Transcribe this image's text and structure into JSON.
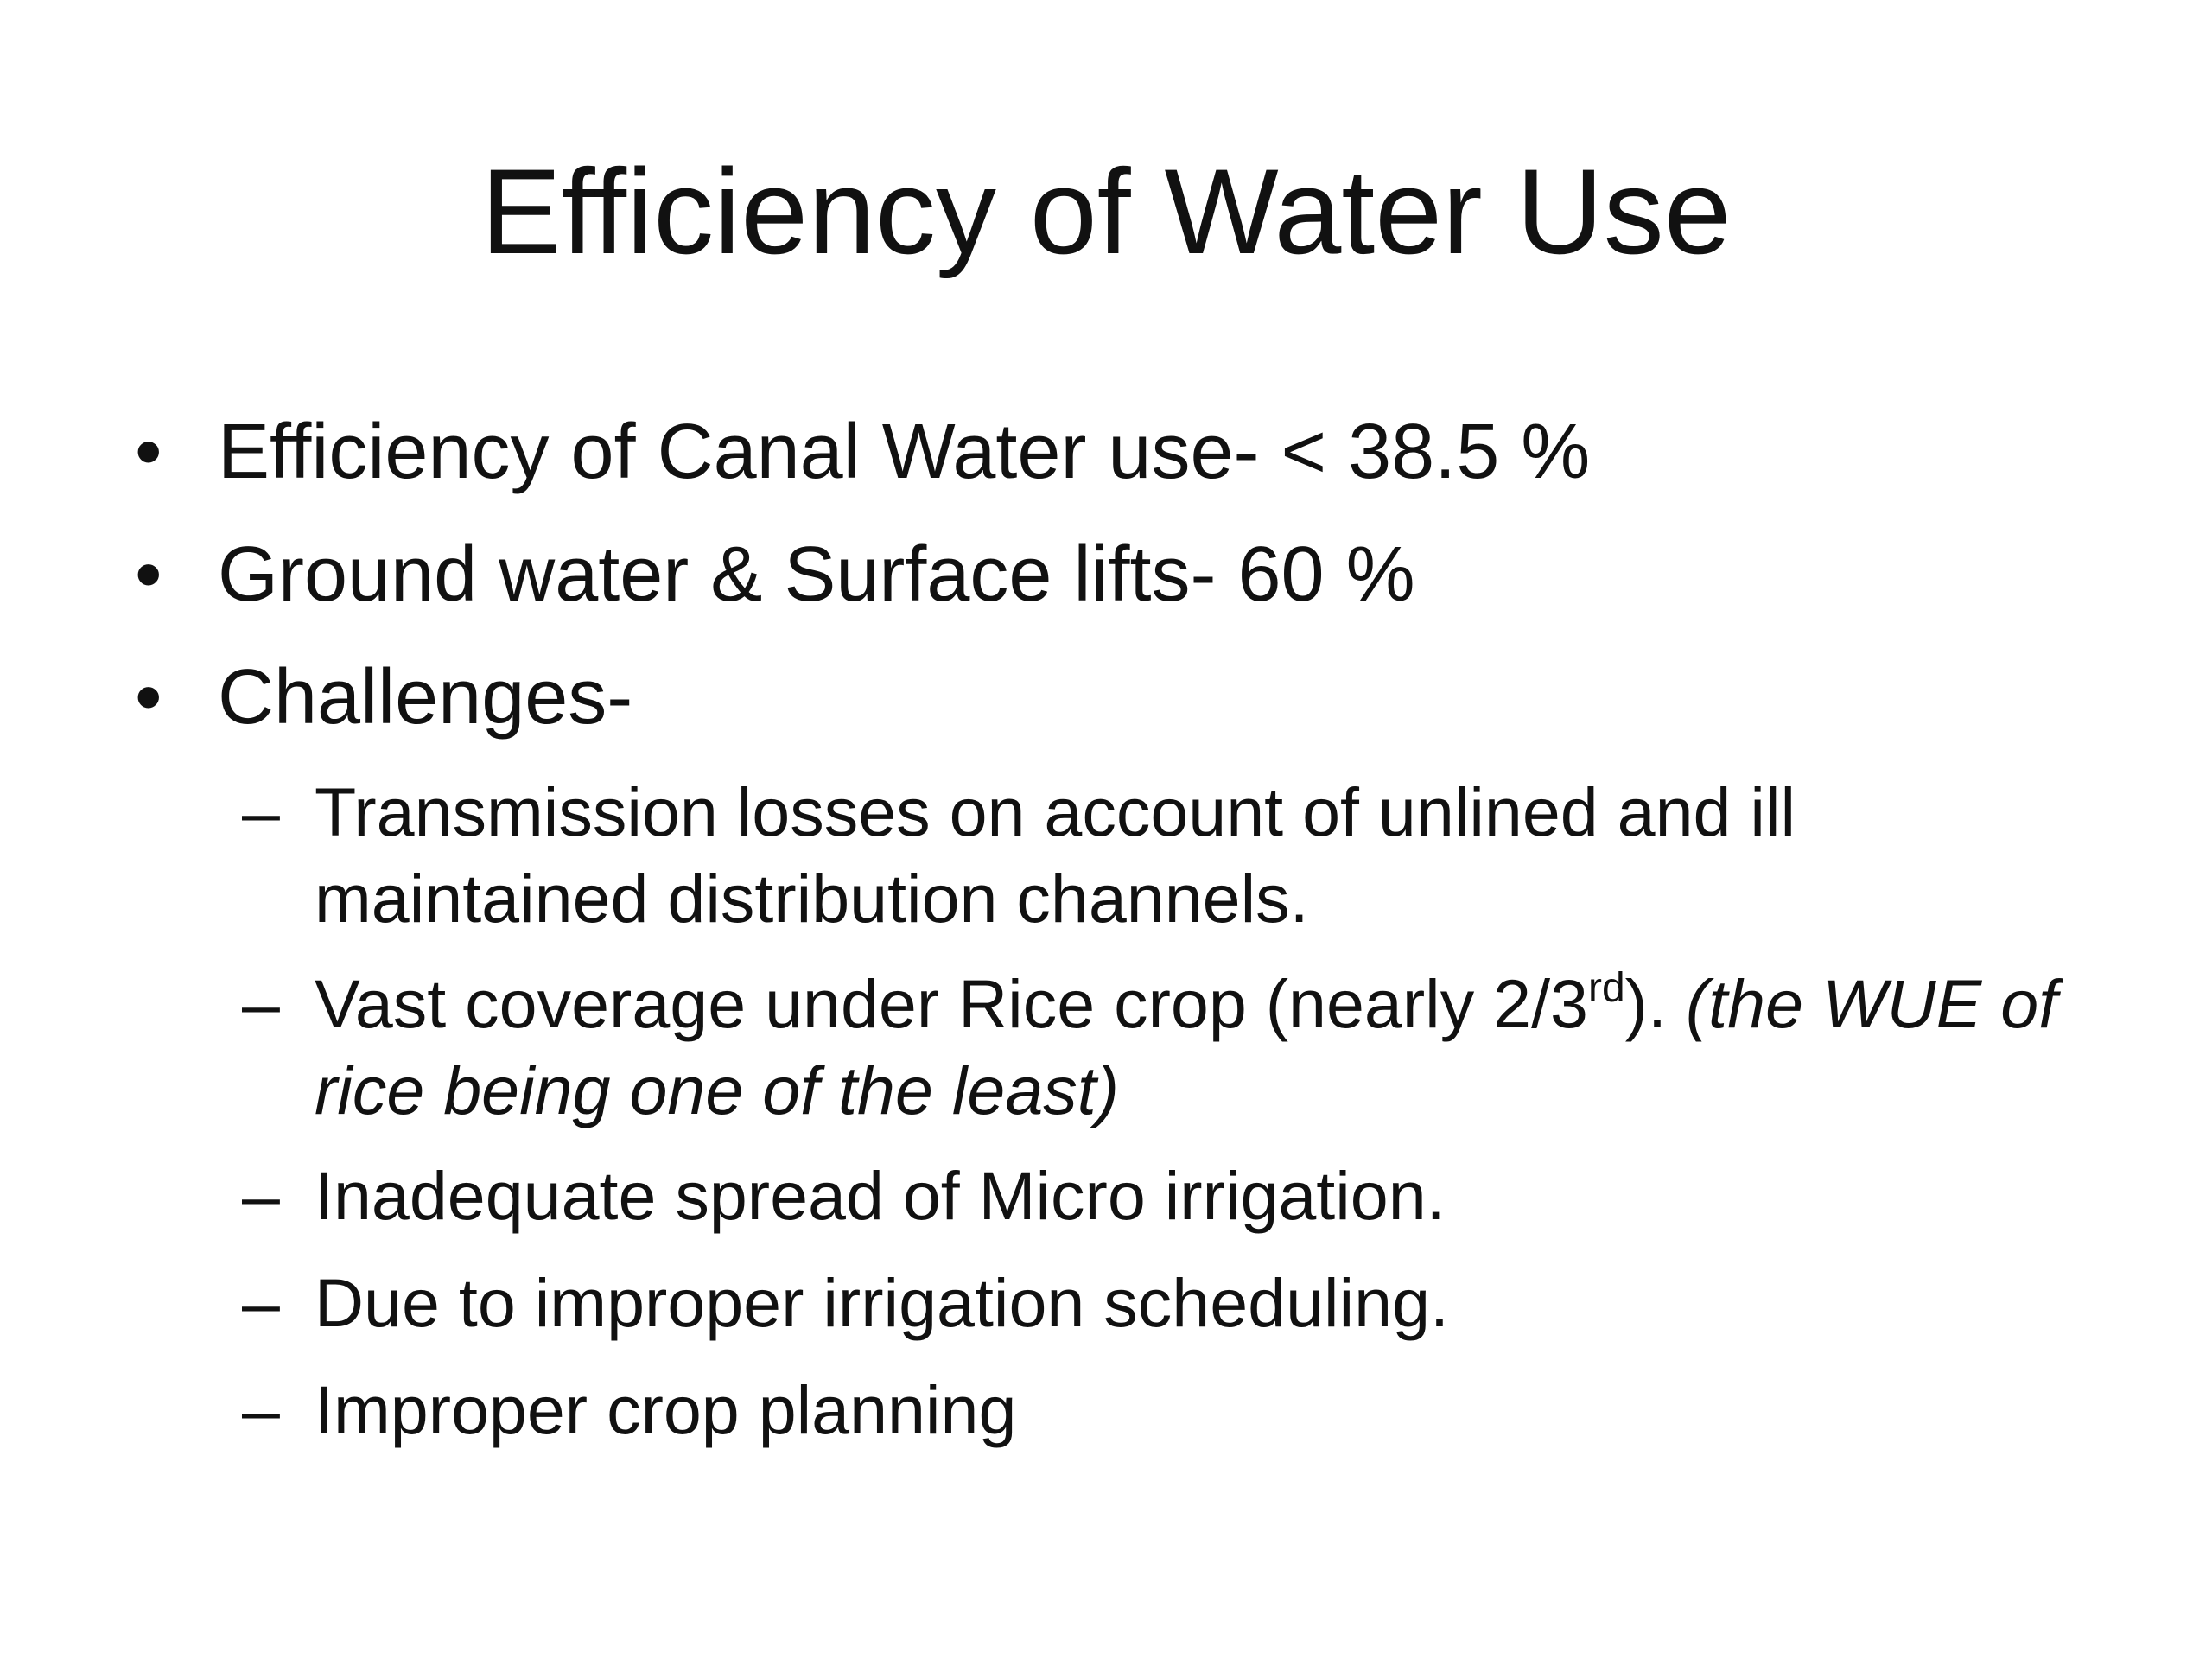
{
  "slide": {
    "title": "Efficiency of Water Use",
    "bullet_glyph": "•",
    "dash_glyph": "–",
    "bullets": [
      {
        "text": "Efficiency of Canal Water use- < 38.5 %"
      },
      {
        "text": "Ground water & Surface lifts- 60 %"
      },
      {
        "text": "Challenges-"
      }
    ],
    "sub_bullets": [
      {
        "text": "Transmission losses on account of unlined and ill maintained distribution channels."
      },
      {
        "text_before": "Vast coverage under Rice crop (nearly 2/3",
        "superscript": "rd",
        "text_after": "). ",
        "italic_text": "(the WUE of rice being one of the least)"
      },
      {
        "text": "Inadequate spread of Micro irrigation."
      },
      {
        "text": "Due to improper irrigation scheduling."
      },
      {
        "text": "Improper crop planning"
      }
    ]
  }
}
